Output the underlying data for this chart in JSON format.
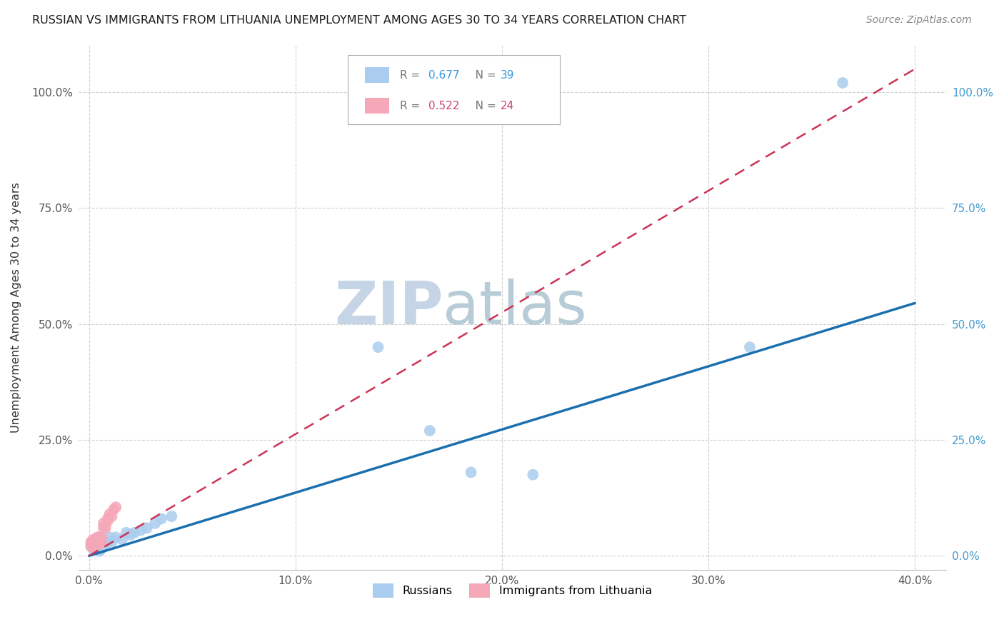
{
  "title": "RUSSIAN VS IMMIGRANTS FROM LITHUANIA UNEMPLOYMENT AMONG AGES 30 TO 34 YEARS CORRELATION CHART",
  "source": "Source: ZipAtlas.com",
  "ylabel_label": "Unemployment Among Ages 30 to 34 years",
  "xlabel_ticks": [
    "0.0%",
    "",
    "",
    "",
    "10.0%",
    "",
    "",
    "",
    "20.0%",
    "",
    "",
    "",
    "30.0%",
    "",
    "",
    "",
    "40.0%"
  ],
  "xlabel_vals": [
    0.0,
    0.025,
    0.05,
    0.075,
    0.1,
    0.125,
    0.15,
    0.175,
    0.2,
    0.225,
    0.25,
    0.275,
    0.3,
    0.325,
    0.35,
    0.375,
    0.4
  ],
  "xlabel_major_ticks": [
    "0.0%",
    "10.0%",
    "20.0%",
    "30.0%",
    "40.0%"
  ],
  "xlabel_major_vals": [
    0.0,
    0.1,
    0.2,
    0.3,
    0.4
  ],
  "ylabel_ticks": [
    "0.0%",
    "25.0%",
    "50.0%",
    "75.0%",
    "100.0%"
  ],
  "ylabel_vals": [
    0.0,
    0.25,
    0.5,
    0.75,
    1.0
  ],
  "russian_R": "0.677",
  "russian_N": "39",
  "lithuania_R": "0.522",
  "lithuania_N": "24",
  "russian_scatter_color": "#aaccee",
  "russian_line_color": "#1a6faf",
  "lithuania_scatter_color": "#f4a8b8",
  "lithuania_line_color": "#cc3355",
  "watermark_zip": "ZIP",
  "watermark_atlas": "atlas",
  "watermark_zip_color": "#c5d5e5",
  "watermark_atlas_color": "#b8ccd8",
  "russians_x": [
    0.001,
    0.001,
    0.002,
    0.002,
    0.002,
    0.002,
    0.003,
    0.003,
    0.003,
    0.004,
    0.004,
    0.004,
    0.005,
    0.005,
    0.005,
    0.005,
    0.006,
    0.006,
    0.007,
    0.008,
    0.009,
    0.01,
    0.011,
    0.013,
    0.016,
    0.018,
    0.02,
    0.022,
    0.025,
    0.028,
    0.032,
    0.035,
    0.04,
    0.14,
    0.165,
    0.185,
    0.215,
    0.32,
    0.365
  ],
  "russians_y": [
    0.02,
    0.025,
    0.015,
    0.02,
    0.025,
    0.03,
    0.015,
    0.02,
    0.025,
    0.015,
    0.02,
    0.025,
    0.01,
    0.015,
    0.02,
    0.025,
    0.015,
    0.02,
    0.02,
    0.025,
    0.03,
    0.04,
    0.03,
    0.04,
    0.035,
    0.05,
    0.045,
    0.05,
    0.055,
    0.06,
    0.07,
    0.08,
    0.085,
    0.45,
    0.27,
    0.18,
    0.175,
    0.45,
    1.02
  ],
  "lithuania_x": [
    0.001,
    0.001,
    0.001,
    0.002,
    0.002,
    0.002,
    0.003,
    0.003,
    0.003,
    0.004,
    0.004,
    0.005,
    0.005,
    0.006,
    0.006,
    0.007,
    0.007,
    0.008,
    0.009,
    0.009,
    0.01,
    0.011,
    0.012,
    0.013
  ],
  "lithuania_y": [
    0.02,
    0.025,
    0.03,
    0.02,
    0.025,
    0.035,
    0.025,
    0.03,
    0.035,
    0.03,
    0.04,
    0.025,
    0.04,
    0.03,
    0.04,
    0.06,
    0.07,
    0.06,
    0.075,
    0.08,
    0.09,
    0.085,
    0.1,
    0.105
  ],
  "blue_line_x0": 0.0,
  "blue_line_y0": 0.0,
  "blue_line_x1": 0.4,
  "blue_line_y1": 0.545,
  "pink_line_x0": 0.0,
  "pink_line_y0": 0.0,
  "pink_line_x1": 0.4,
  "pink_line_y1": 1.05,
  "xlim": [
    -0.005,
    0.415
  ],
  "ylim": [
    -0.03,
    1.1
  ]
}
